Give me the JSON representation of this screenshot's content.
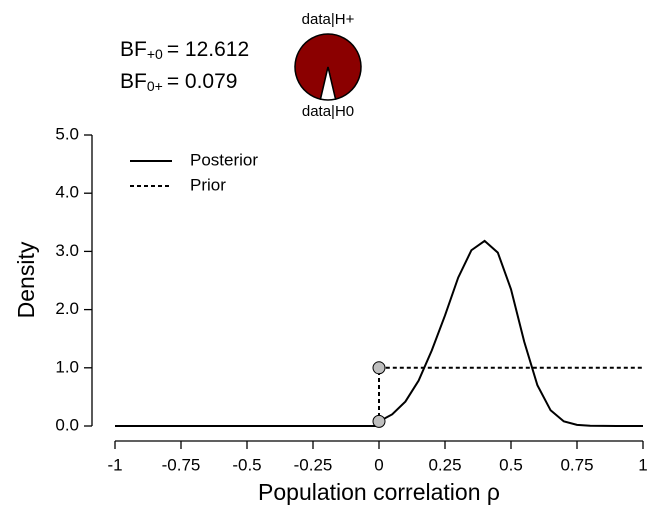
{
  "chart_data": {
    "type": "line",
    "xlabel": "Population correlation ρ",
    "ylabel": "Density",
    "xlim": [
      -1,
      1
    ],
    "ylim": [
      0,
      5
    ],
    "xticks": [
      -1,
      -0.75,
      -0.5,
      -0.25,
      0,
      0.25,
      0.5,
      0.75,
      1
    ],
    "yticks": [
      {
        "value": 0,
        "label": "0.0"
      },
      {
        "value": 1,
        "label": "1.0"
      },
      {
        "value": 2,
        "label": "2.0"
      },
      {
        "value": 3,
        "label": "3.0"
      },
      {
        "value": 4,
        "label": "4.0"
      },
      {
        "value": 5,
        "label": "5.0"
      }
    ],
    "series": [
      {
        "name": "Posterior",
        "color": "#000000",
        "dash": "solid",
        "x": [
          -1,
          0,
          0,
          0.05,
          0.1,
          0.15,
          0.2,
          0.25,
          0.3,
          0.35,
          0.4,
          0.45,
          0.5,
          0.55,
          0.6,
          0.65,
          0.7,
          0.75,
          0.8,
          0.9,
          1
        ],
        "values": [
          0,
          0,
          0.079,
          0.2,
          0.42,
          0.78,
          1.3,
          1.9,
          2.55,
          3.02,
          3.18,
          2.98,
          2.35,
          1.45,
          0.7,
          0.27,
          0.08,
          0.02,
          0.004,
          0,
          0
        ]
      },
      {
        "name": "Prior",
        "color": "#000000",
        "dash": "dotted",
        "x": [
          -1,
          0,
          0,
          1
        ],
        "values": [
          0,
          0,
          1,
          1
        ]
      }
    ],
    "points": {
      "x": [
        0,
        0
      ],
      "values": [
        1,
        0.079
      ],
      "color": "#bfbfbf"
    },
    "bayes_factors": [
      {
        "symbol": "BF",
        "subscript": "+0",
        "value": "= 12.612"
      },
      {
        "symbol": "BF",
        "subscript": "0+",
        "value": "= 0.079"
      }
    ],
    "pie": {
      "labels": [
        "data|H+",
        "data|H0"
      ],
      "values": [
        0.927,
        0.073
      ],
      "colors": [
        "#8b0000",
        "#ffffff"
      ]
    }
  }
}
